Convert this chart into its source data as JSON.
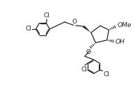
{
  "bg_color": "#ffffff",
  "line_color": "#222222",
  "line_width": 0.9,
  "font_size": 6.5,
  "figsize": [
    1.94,
    1.3
  ],
  "dpi": 100,
  "xlim": [
    0,
    10
  ],
  "ylim": [
    0,
    6.7
  ]
}
